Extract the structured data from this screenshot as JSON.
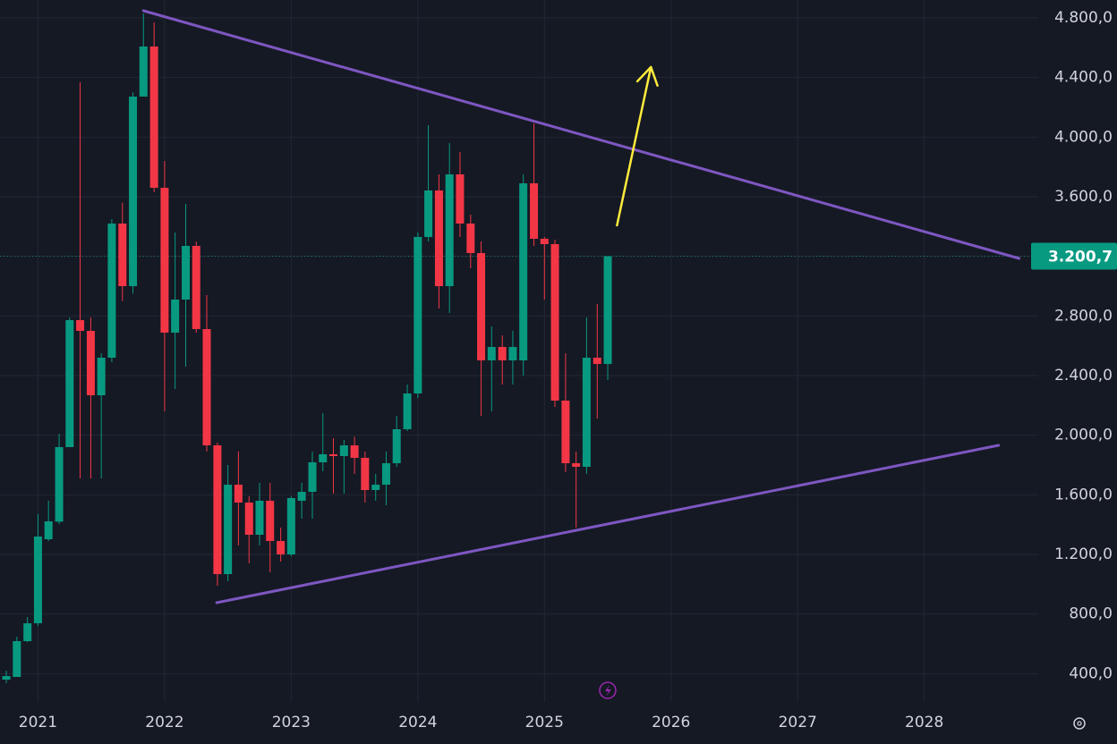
{
  "chart_data": {
    "type": "candlestick",
    "background": "#151924",
    "up_color": "#089981",
    "down_color": "#f23645",
    "grid": true,
    "xlim": [
      2020.7,
      2028.9
    ],
    "xticks": [
      2021,
      2022,
      2023,
      2024,
      2025,
      2026,
      2027,
      2028
    ],
    "ylim": [
      210,
      4920
    ],
    "yticks": [
      {
        "value": 400,
        "label": "400,0"
      },
      {
        "value": 800,
        "label": "800,0"
      },
      {
        "value": 1200,
        "label": "1.200,0"
      },
      {
        "value": 1600,
        "label": "1.600,0"
      },
      {
        "value": 2000,
        "label": "2.000,0"
      },
      {
        "value": 2400,
        "label": "2.400,0"
      },
      {
        "value": 2800,
        "label": "2.800,0"
      },
      {
        "value": 3200,
        "label": "3.200,0"
      },
      {
        "value": 3600,
        "label": "3.600,0"
      },
      {
        "value": 4000,
        "label": "4.000,0"
      },
      {
        "value": 4400,
        "label": "4.400,0"
      },
      {
        "value": 4800,
        "label": "4.800,0"
      }
    ],
    "last_price": {
      "value": 3200.7,
      "label": "3.200,7",
      "color": "#089981"
    },
    "x": [
      2020.75,
      2020.833,
      2020.917,
      2021.0,
      2021.083,
      2021.167,
      2021.25,
      2021.333,
      2021.417,
      2021.5,
      2021.583,
      2021.667,
      2021.75,
      2021.833,
      2021.917,
      2022.0,
      2022.083,
      2022.167,
      2022.25,
      2022.333,
      2022.417,
      2022.5,
      2022.583,
      2022.667,
      2022.75,
      2022.833,
      2022.917,
      2023.0,
      2023.083,
      2023.167,
      2023.25,
      2023.333,
      2023.417,
      2023.5,
      2023.583,
      2023.667,
      2023.75,
      2023.833,
      2023.917,
      2024.0,
      2024.083,
      2024.167,
      2024.25,
      2024.333,
      2024.417,
      2024.5,
      2024.583,
      2024.667,
      2024.75,
      2024.833,
      2024.917,
      2025.0,
      2025.083,
      2025.167,
      2025.25,
      2025.333,
      2025.417,
      2025.5
    ],
    "open": [
      360,
      378,
      618,
      738,
      1302,
      1420,
      1920,
      2772,
      2700,
      2268,
      2520,
      3420,
      3000,
      4272,
      4608,
      3660,
      2688,
      2910,
      3270,
      2712,
      1932,
      1068,
      1668,
      1548,
      1332,
      1560,
      1290,
      1200,
      1560,
      1620,
      1818,
      1872,
      1860,
      1932,
      1848,
      1632,
      1668,
      1812,
      2040,
      2280,
      3330,
      3642,
      3000,
      3750,
      3420,
      3222,
      2502,
      2592,
      2502,
      2502,
      3690,
      3318,
      3282,
      2232,
      1812,
      1788,
      2520,
      2478
    ],
    "high": [
      420,
      648,
      780,
      1470,
      1560,
      2010,
      2790,
      4368,
      2790,
      2550,
      3450,
      3560,
      4300,
      4830,
      4770,
      3840,
      3360,
      3552,
      3300,
      2940,
      1950,
      1800,
      1890,
      1590,
      1680,
      1680,
      1380,
      1590,
      1680,
      1890,
      2148,
      1980,
      1968,
      1990,
      1890,
      1740,
      1890,
      2130,
      2340,
      3360,
      4080,
      3750,
      3960,
      3900,
      3480,
      3300,
      2730,
      2670,
      2700,
      3750,
      4092,
      3330,
      3312,
      2550,
      1890,
      2790,
      2880,
      3200.7
    ],
    "low": [
      336,
      378,
      612,
      720,
      1290,
      1404,
      1920,
      1710,
      1710,
      1710,
      2490,
      2900,
      2950,
      4272,
      3630,
      2160,
      2310,
      2460,
      2688,
      1890,
      990,
      1020,
      1260,
      1140,
      1260,
      1080,
      1152,
      1188,
      1440,
      1440,
      1758,
      1608,
      1608,
      1740,
      1548,
      1560,
      1530,
      1788,
      2028,
      2250,
      3300,
      2850,
      2820,
      3330,
      3120,
      2130,
      2160,
      2340,
      2340,
      2400,
      3270,
      2910,
      2190,
      1752,
      1380,
      1740,
      2112,
      2370
    ],
    "close": [
      384,
      618,
      738,
      1320,
      1422,
      1920,
      2772,
      2700,
      2268,
      2520,
      3420,
      3000,
      4272,
      4608,
      3660,
      2688,
      2910,
      3270,
      2712,
      1932,
      1068,
      1668,
      1548,
      1332,
      1560,
      1290,
      1200,
      1578,
      1620,
      1818,
      1872,
      1860,
      1932,
      1848,
      1632,
      1668,
      1812,
      2040,
      2280,
      3330,
      3642,
      3000,
      3750,
      3420,
      3222,
      2502,
      2592,
      2502,
      2592,
      3690,
      3318,
      3282,
      2232,
      1812,
      1788,
      2520,
      2478,
      3200.7
    ],
    "trendlines": [
      {
        "color": "#7e57c2",
        "x": [
          2021.833,
          2028.749
        ],
        "y": [
          4848,
          3186
        ]
      },
      {
        "color": "#7e57c2",
        "x": [
          2022.411,
          2028.587
        ],
        "y": [
          876,
          1932
        ]
      }
    ],
    "arrow": {
      "color": "#ffeb3b",
      "x": [
        2025.573,
        2025.841
      ],
      "y": [
        3408,
        4470
      ]
    }
  }
}
